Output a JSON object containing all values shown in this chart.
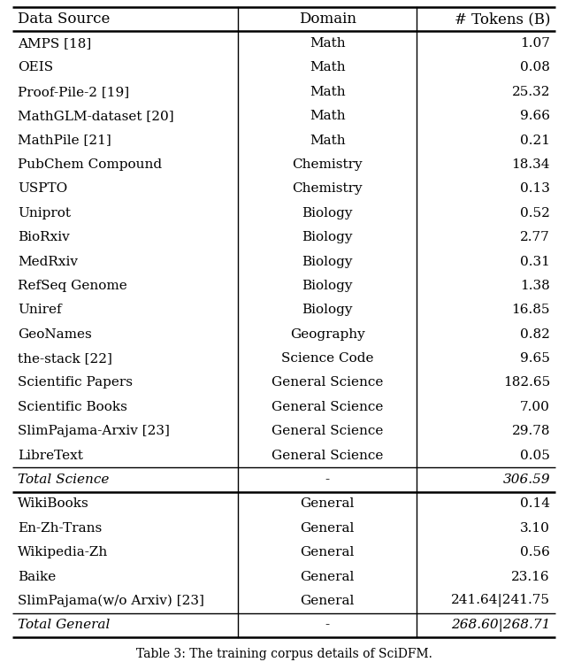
{
  "columns": [
    "Data Source",
    "Domain",
    "# Tokens (B)"
  ],
  "rows": [
    [
      "AMPS [18]",
      "Math",
      "1.07"
    ],
    [
      "OEIS",
      "Math",
      "0.08"
    ],
    [
      "Proof-Pile-2 [19]",
      "Math",
      "25.32"
    ],
    [
      "MathGLM-dataset [20]",
      "Math",
      "9.66"
    ],
    [
      "MathPile [21]",
      "Math",
      "0.21"
    ],
    [
      "PubChem Compound",
      "Chemistry",
      "18.34"
    ],
    [
      "USPTO",
      "Chemistry",
      "0.13"
    ],
    [
      "Uniprot",
      "Biology",
      "0.52"
    ],
    [
      "BioRxiv",
      "Biology",
      "2.77"
    ],
    [
      "MedRxiv",
      "Biology",
      "0.31"
    ],
    [
      "RefSeq Genome",
      "Biology",
      "1.38"
    ],
    [
      "Uniref",
      "Biology",
      "16.85"
    ],
    [
      "GeoNames",
      "Geography",
      "0.82"
    ],
    [
      "the-stack [22]",
      "Science Code",
      "9.65"
    ],
    [
      "Scientific Papers",
      "General Science",
      "182.65"
    ],
    [
      "Scientific Books",
      "General Science",
      "7.00"
    ],
    [
      "SlimPajama-Arxiv [23]",
      "General Science",
      "29.78"
    ],
    [
      "LibreText",
      "General Science",
      "0.05"
    ]
  ],
  "total_science": [
    "Total Science",
    "-",
    "306.59"
  ],
  "general_rows": [
    [
      "WikiBooks",
      "General",
      "0.14"
    ],
    [
      "En-Zh-Trans",
      "General",
      "3.10"
    ],
    [
      "Wikipedia-Zh",
      "General",
      "0.56"
    ],
    [
      "Baike",
      "General",
      "23.16"
    ],
    [
      "SlimPajama(w/o Arxiv) [23]",
      "General",
      "241.64|241.75"
    ]
  ],
  "total_general": [
    "Total General",
    "-",
    "268.60|268.71"
  ],
  "caption": "Table 3: The training corpus details of SciDFM.",
  "font_size": 11.0,
  "header_font_size": 12.0
}
